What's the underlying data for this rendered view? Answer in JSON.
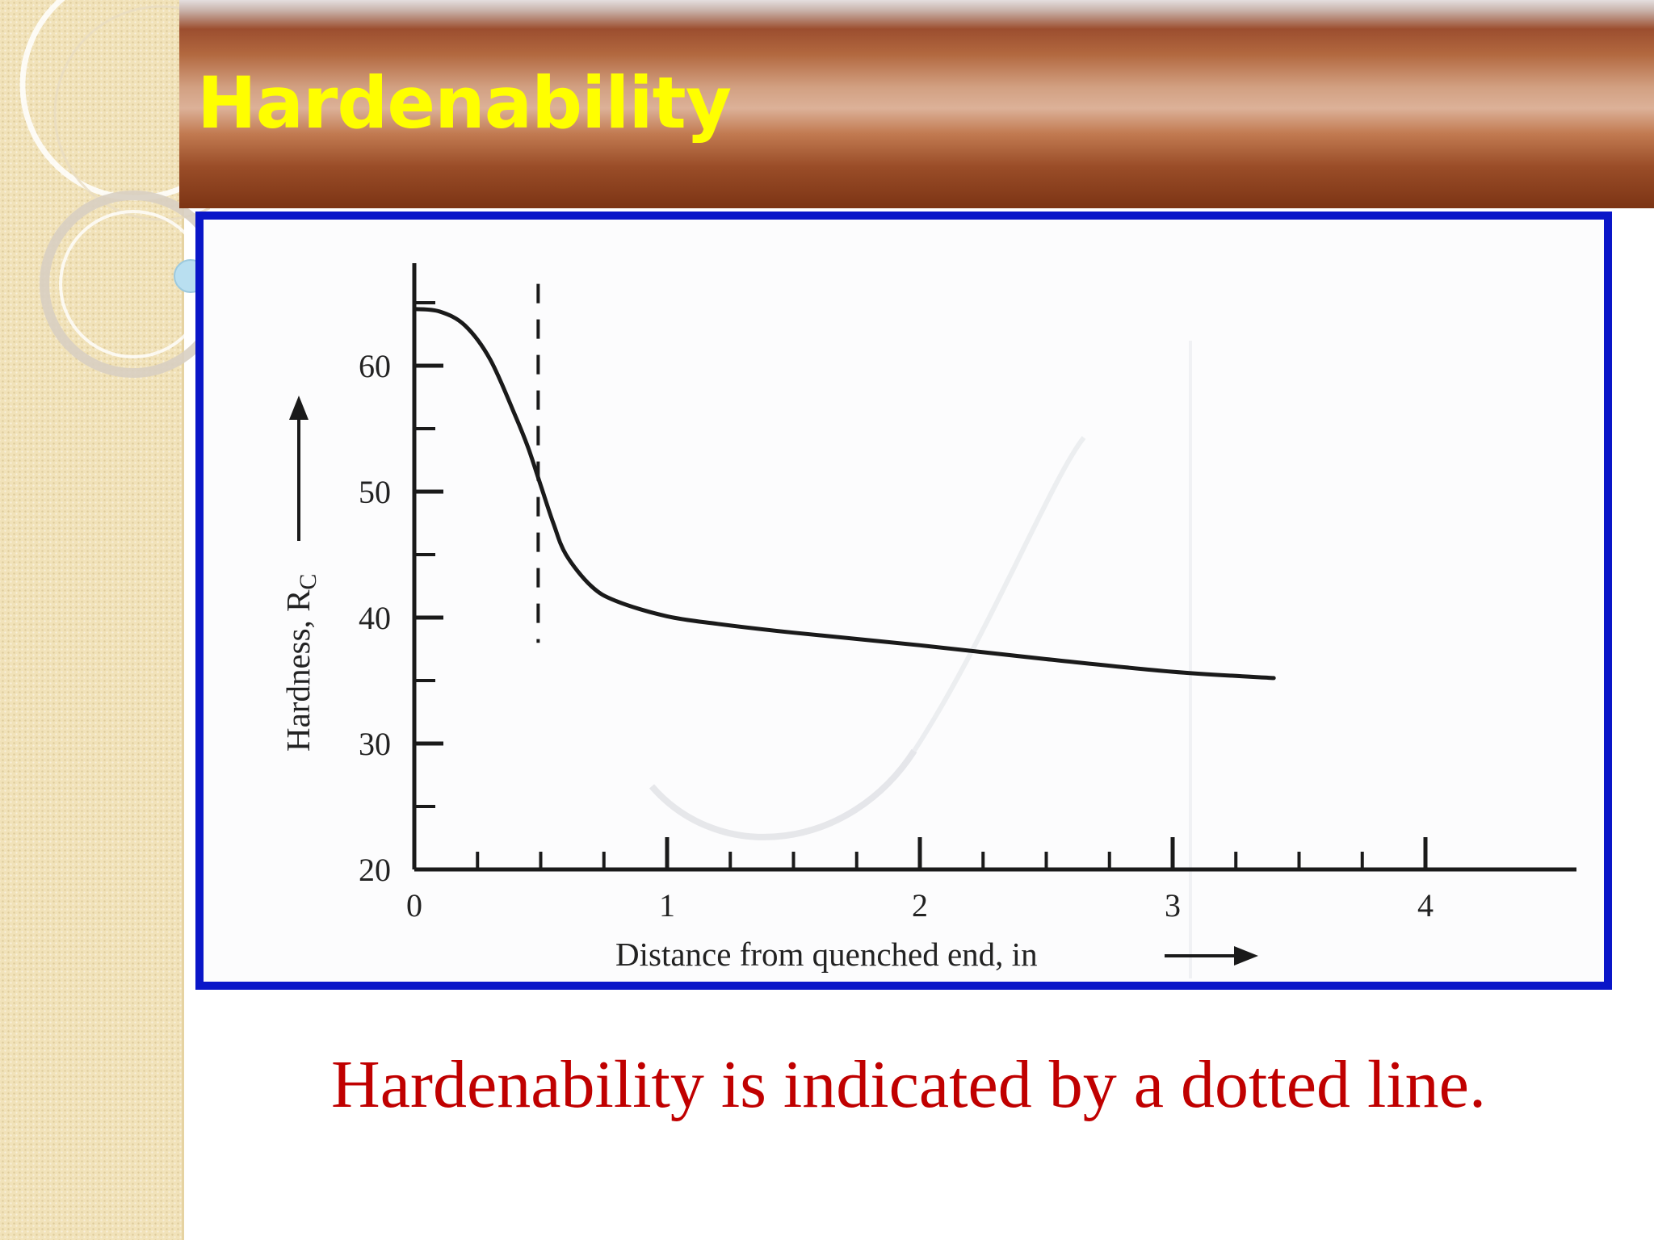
{
  "slide": {
    "title": "Hardenability",
    "caption": "Hardenability is indicated by a dotted line."
  },
  "colors": {
    "title_text": "#ffff00",
    "caption_text": "#c00000",
    "frame_border": "#0a16c8",
    "curve": "#1a1a1a"
  },
  "chart_data": {
    "type": "line",
    "title": "",
    "xlabel": "Distance from quenched end, in",
    "ylabel_main": "Hardness, R",
    "ylabel_sub": "C",
    "xlim": [
      0,
      4.5
    ],
    "ylim": [
      20,
      67
    ],
    "x_ticks": [
      0,
      1,
      2,
      3,
      4
    ],
    "x_tick_labels": [
      "0",
      "1",
      "2",
      "3",
      "4"
    ],
    "y_ticks": [
      20,
      30,
      40,
      50,
      60
    ],
    "y_tick_labels": [
      "20",
      "30",
      "40",
      "50",
      "60"
    ],
    "series": [
      {
        "x": [
          0,
          0.1,
          0.2,
          0.3,
          0.4,
          0.45,
          0.5,
          0.55,
          0.6,
          0.7,
          0.8,
          1.0,
          1.2,
          1.5,
          2.0,
          2.5,
          3.0,
          3.4
        ],
        "y": [
          64.5,
          64.3,
          63.2,
          60.5,
          56,
          53.5,
          50.5,
          47.5,
          45,
          42.5,
          41.3,
          40.1,
          39.5,
          38.8,
          37.8,
          36.7,
          35.7,
          35.2
        ]
      }
    ],
    "marker_line": {
      "x": 0.49,
      "y_range": [
        38,
        66.5
      ],
      "style": "dashed"
    },
    "grid": false,
    "legend": "none"
  }
}
